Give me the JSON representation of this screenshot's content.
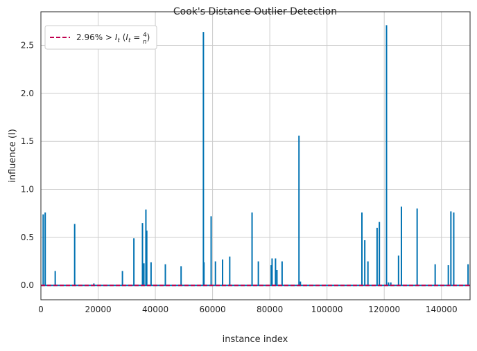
{
  "chart_data": {
    "type": "stem",
    "title": "Cook's Distance Outlier Detection",
    "xlabel": "instance index",
    "ylabel": "influence (I)",
    "xlim": [
      0,
      150000
    ],
    "ylim": [
      -0.15,
      2.85
    ],
    "x_ticks": [
      "0",
      "20000",
      "40000",
      "60000",
      "80000",
      "100000",
      "120000",
      "140000"
    ],
    "y_ticks": [
      "0.0",
      "0.5",
      "1.0",
      "1.5",
      "2.0",
      "2.5"
    ],
    "grid": true,
    "legend": {
      "placement": "top-left",
      "label": "2.96% > I_t (I_t = 4/n)"
    },
    "colors": {
      "stem": "#0072b2",
      "threshold": "#c0004e",
      "grid": "#cccccc",
      "axes": "#262626"
    },
    "threshold": 2.67e-05,
    "stems": [
      {
        "x": 800,
        "y": 0.74
      },
      {
        "x": 1500,
        "y": 0.76
      },
      {
        "x": 5000,
        "y": 0.15
      },
      {
        "x": 11800,
        "y": 0.64
      },
      {
        "x": 18500,
        "y": 0.02
      },
      {
        "x": 28500,
        "y": 0.15
      },
      {
        "x": 32500,
        "y": 0.49
      },
      {
        "x": 35500,
        "y": 0.65
      },
      {
        "x": 36000,
        "y": 0.23
      },
      {
        "x": 36700,
        "y": 0.79
      },
      {
        "x": 37000,
        "y": 0.57
      },
      {
        "x": 38500,
        "y": 0.24
      },
      {
        "x": 43500,
        "y": 0.22
      },
      {
        "x": 49000,
        "y": 0.2
      },
      {
        "x": 56800,
        "y": 2.64
      },
      {
        "x": 57000,
        "y": 0.24
      },
      {
        "x": 59500,
        "y": 0.72
      },
      {
        "x": 61000,
        "y": 0.25
      },
      {
        "x": 63500,
        "y": 0.27
      },
      {
        "x": 66000,
        "y": 0.3
      },
      {
        "x": 73800,
        "y": 0.76
      },
      {
        "x": 76000,
        "y": 0.25
      },
      {
        "x": 80500,
        "y": 0.21
      },
      {
        "x": 80800,
        "y": 0.28
      },
      {
        "x": 82000,
        "y": 0.28
      },
      {
        "x": 82500,
        "y": 0.16
      },
      {
        "x": 84300,
        "y": 0.25
      },
      {
        "x": 90200,
        "y": 1.56
      },
      {
        "x": 90700,
        "y": 0.04
      },
      {
        "x": 112200,
        "y": 0.76
      },
      {
        "x": 113200,
        "y": 0.47
      },
      {
        "x": 114300,
        "y": 0.25
      },
      {
        "x": 117500,
        "y": 0.6
      },
      {
        "x": 118300,
        "y": 0.66
      },
      {
        "x": 120800,
        "y": 2.71
      },
      {
        "x": 121500,
        "y": 0.03
      },
      {
        "x": 122300,
        "y": 0.03
      },
      {
        "x": 125000,
        "y": 0.31
      },
      {
        "x": 126000,
        "y": 0.82
      },
      {
        "x": 131500,
        "y": 0.8
      },
      {
        "x": 137800,
        "y": 0.22
      },
      {
        "x": 142400,
        "y": 0.21
      },
      {
        "x": 143300,
        "y": 0.77
      },
      {
        "x": 144300,
        "y": 0.76
      },
      {
        "x": 149300,
        "y": 0.22
      }
    ]
  }
}
